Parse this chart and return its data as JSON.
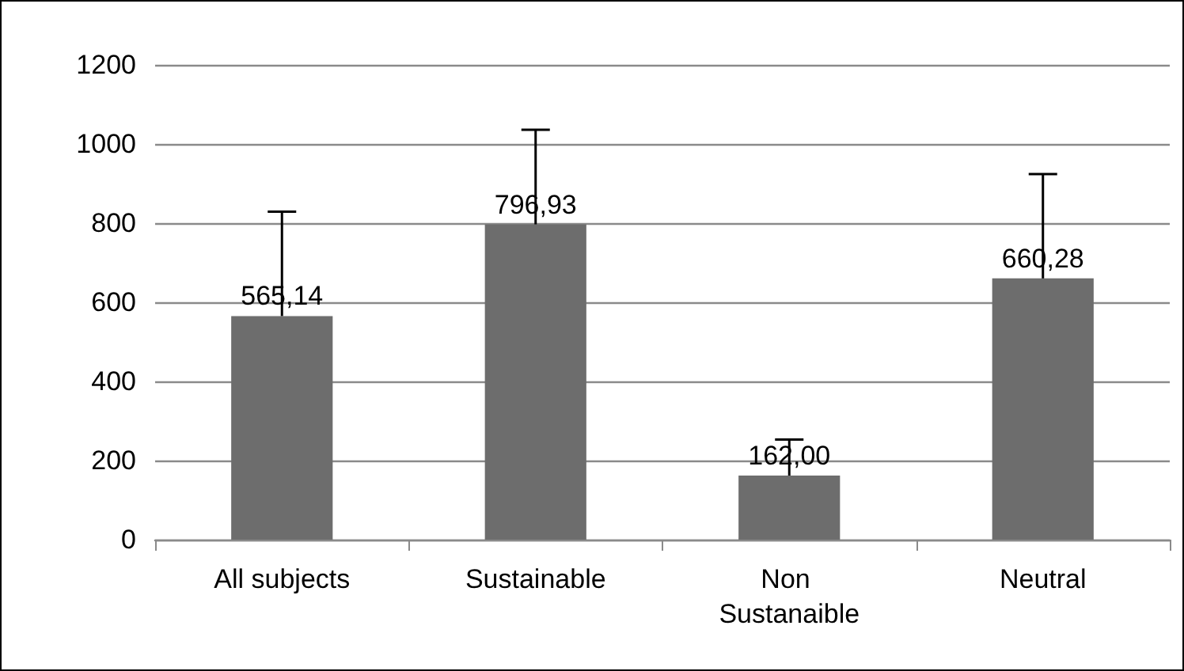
{
  "chart_data": {
    "type": "bar",
    "categories": [
      "All subjects",
      "Sustainable",
      "Non Sustanaible",
      "Neutral"
    ],
    "values": [
      565.14,
      796.93,
      162.0,
      660.28
    ],
    "color": "#6d6d6d",
    "errors": [
      [
        565.14,
        829
      ],
      [
        796.93,
        1036
      ],
      [
        162.0,
        253
      ],
      [
        660.28,
        924
      ]
    ],
    "value_labels": [
      "565,14",
      "796,93",
      "162,00",
      "660,28"
    ],
    "ylim": [
      0,
      1200
    ],
    "yticks": [
      0,
      200,
      400,
      600,
      800,
      1000,
      1200
    ],
    "grid": "y"
  }
}
